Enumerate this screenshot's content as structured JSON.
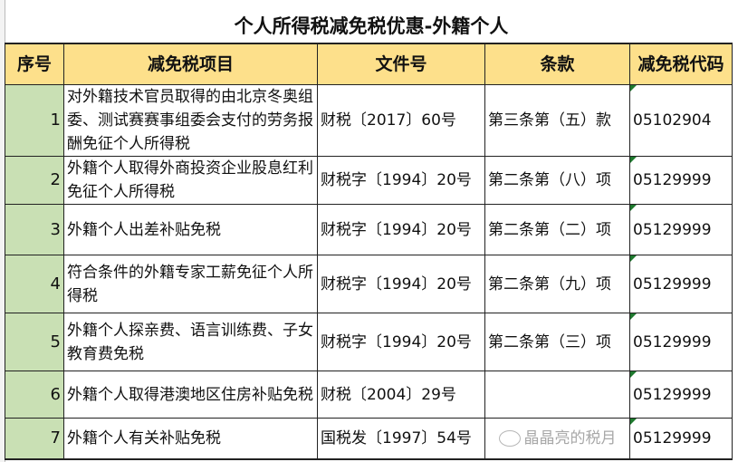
{
  "title": "个人所得税减免税优惠-外籍个人",
  "columns": [
    "序号",
    "减免税项目",
    "文件号",
    "条款",
    "减免税代码"
  ],
  "rows": [
    {
      "seq": "1",
      "item": "对外籍技术官员取得的由北京冬奥组委、测试赛赛事组委会支付的劳务报酬免征个人所得税",
      "doc": "财税〔2017〕60号",
      "clause": "第三条第（五）款",
      "code": "05102904"
    },
    {
      "seq": "2",
      "item": "外籍个人取得外商投资企业股息红利免征个人所得税",
      "doc": "财税字〔1994〕20号",
      "clause": "第二条第（八）项",
      "code": "05129999"
    },
    {
      "seq": "3",
      "item": "外籍个人出差补贴免税",
      "doc": "财税字〔1994〕20号",
      "clause": "第二条第（二）项",
      "code": "05129999"
    },
    {
      "seq": "4",
      "item": "符合条件的外籍专家工薪免征个人所得税",
      "doc": "财税字〔1994〕20号",
      "clause": "第二条第（九）项",
      "code": "05129999"
    },
    {
      "seq": "5",
      "item": "外籍个人探亲费、语言训练费、子女教育费免税",
      "doc": "财税字〔1994〕20号",
      "clause": "第二条第（三）项",
      "code": "05129999"
    },
    {
      "seq": "6",
      "item": "外籍个人取得港澳地区住房补贴免税",
      "doc": "财税〔2004〕29号",
      "clause": "",
      "code": "05129999"
    },
    {
      "seq": "7",
      "item": "外籍个人有关补贴免税",
      "doc": "国税发〔1997〕54号",
      "clause": "",
      "code": "05129999"
    }
  ],
  "watermark": "晶晶亮的税月",
  "colors": {
    "header_bg": "#fde08b",
    "seq_bg": "#c9e0b4",
    "comment_marker": "#1e7a2e"
  }
}
